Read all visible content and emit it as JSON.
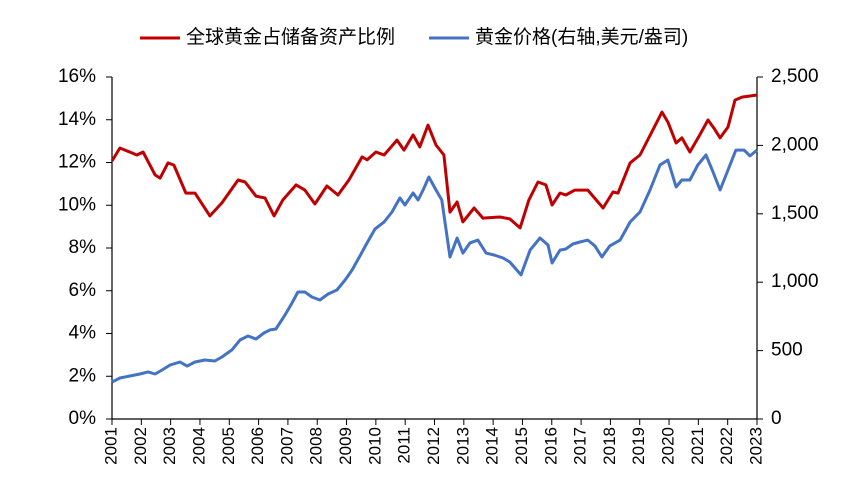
{
  "chart_data": {
    "type": "line",
    "xlim": [
      2001,
      2023
    ],
    "xticks": [
      2001,
      2002,
      2003,
      2004,
      2005,
      2006,
      2007,
      2008,
      2009,
      2010,
      2011,
      2012,
      2013,
      2014,
      2015,
      2016,
      2017,
      2018,
      2019,
      2020,
      2021,
      2022,
      2023
    ],
    "ylim": [
      0,
      16
    ],
    "yticks": [
      {
        "value": 0,
        "label": "0%"
      },
      {
        "value": 2,
        "label": "2%"
      },
      {
        "value": 4,
        "label": "4%"
      },
      {
        "value": 6,
        "label": "6%"
      },
      {
        "value": 8,
        "label": "8%"
      },
      {
        "value": 10,
        "label": "10%"
      },
      {
        "value": 12,
        "label": "12%"
      },
      {
        "value": 14,
        "label": "14%"
      },
      {
        "value": 16,
        "label": "16%"
      }
    ],
    "y2lim": [
      0,
      2500
    ],
    "y2ticks": [
      0,
      500,
      {
        "value": 1000,
        "label": "1,000"
      },
      {
        "value": 1500,
        "label": "1,500"
      },
      {
        "value": 2000,
        "label": "2,000"
      },
      {
        "value": 2500,
        "label": "2,500"
      }
    ],
    "legend": "top",
    "series": [
      {
        "name": "全球黄金占储备资产比例",
        "color": "#c00000",
        "x": [
          2001.0,
          2001.27,
          2001.85,
          2002.06,
          2002.47,
          2002.64,
          2002.91,
          2003.11,
          2003.52,
          2003.83,
          2004.34,
          2004.75,
          2005.3,
          2005.54,
          2005.91,
          2006.22,
          2006.53,
          2006.83,
          2007.28,
          2007.58,
          2007.92,
          2008.33,
          2008.71,
          2009.08,
          2009.53,
          2009.7,
          2010.0,
          2010.28,
          2010.72,
          2010.96,
          2011.27,
          2011.5,
          2011.78,
          2012.05,
          2012.32,
          2012.53,
          2012.77,
          2012.97,
          2013.35,
          2013.65,
          2014.23,
          2014.57,
          2014.92,
          2015.22,
          2015.53,
          2015.8,
          2016.01,
          2016.28,
          2016.48,
          2016.79,
          2017.23,
          2017.75,
          2018.09,
          2018.26,
          2018.67,
          2019.01,
          2019.76,
          2019.96,
          2020.24,
          2020.44,
          2020.71,
          2021.05,
          2021.33,
          2021.53,
          2021.74,
          2022.01,
          2022.25,
          2022.49,
          2023.0
        ],
        "values": [
          12.07,
          12.68,
          12.35,
          12.49,
          11.42,
          11.27,
          11.98,
          11.88,
          10.57,
          10.57,
          9.5,
          10.11,
          11.18,
          11.09,
          10.43,
          10.34,
          9.5,
          10.25,
          10.95,
          10.71,
          10.06,
          10.9,
          10.48,
          11.18,
          12.26,
          12.12,
          12.49,
          12.35,
          13.05,
          12.58,
          13.29,
          12.73,
          13.75,
          12.82,
          12.35,
          9.68,
          10.15,
          9.22,
          9.87,
          9.4,
          9.45,
          9.36,
          8.94,
          10.25,
          11.09,
          10.95,
          10.01,
          10.57,
          10.48,
          10.71,
          10.71,
          9.87,
          10.62,
          10.57,
          11.98,
          12.35,
          14.36,
          13.89,
          12.91,
          13.15,
          12.49,
          13.29,
          13.99,
          13.61,
          13.15,
          13.66,
          14.92,
          15.06,
          15.16
        ]
      },
      {
        "name": "黄金价格(右轴,美元/盎司)",
        "color": "#4472c4",
        "axis": "y2",
        "x": [
          2001.0,
          2001.27,
          2001.61,
          2001.95,
          2002.23,
          2002.47,
          2002.71,
          2002.98,
          2003.32,
          2003.56,
          2003.83,
          2004.17,
          2004.51,
          2004.75,
          2005.09,
          2005.37,
          2005.64,
          2005.91,
          2006.18,
          2006.39,
          2006.59,
          2006.9,
          2007.14,
          2007.34,
          2007.58,
          2007.82,
          2008.09,
          2008.37,
          2008.67,
          2008.95,
          2009.19,
          2009.46,
          2009.66,
          2009.97,
          2010.28,
          2010.55,
          2010.82,
          2010.99,
          2011.27,
          2011.44,
          2011.61,
          2011.81,
          2012.05,
          2012.25,
          2012.53,
          2012.77,
          2012.97,
          2013.21,
          2013.48,
          2013.76,
          2014.03,
          2014.34,
          2014.57,
          2014.95,
          2015.26,
          2015.6,
          2015.87,
          2016.01,
          2016.28,
          2016.48,
          2016.72,
          2016.96,
          2017.23,
          2017.47,
          2017.71,
          2017.98,
          2018.33,
          2018.67,
          2019.01,
          2019.35,
          2019.69,
          2019.96,
          2020.24,
          2020.44,
          2020.71,
          2020.98,
          2021.26,
          2021.5,
          2021.74,
          2022.01,
          2022.28,
          2022.56,
          2022.76,
          2023.0
        ],
        "values": [
          270,
          300,
          314,
          329,
          344,
          329,
          358,
          395,
          417,
          387,
          417,
          431,
          424,
          453,
          505,
          578,
          607,
          585,
          629,
          651,
          658,
          760,
          848,
          928,
          928,
          892,
          870,
          914,
          943,
          1016,
          1089,
          1192,
          1272,
          1389,
          1440,
          1513,
          1616,
          1564,
          1652,
          1601,
          1674,
          1769,
          1674,
          1601,
          1184,
          1323,
          1213,
          1287,
          1308,
          1213,
          1199,
          1177,
          1148,
          1053,
          1235,
          1323,
          1272,
          1140,
          1235,
          1243,
          1279,
          1294,
          1308,
          1265,
          1184,
          1265,
          1308,
          1440,
          1513,
          1674,
          1857,
          1893,
          1696,
          1747,
          1747,
          1857,
          1930,
          1806,
          1674,
          1820,
          1966,
          1966,
          1923,
          1966
        ]
      }
    ]
  }
}
